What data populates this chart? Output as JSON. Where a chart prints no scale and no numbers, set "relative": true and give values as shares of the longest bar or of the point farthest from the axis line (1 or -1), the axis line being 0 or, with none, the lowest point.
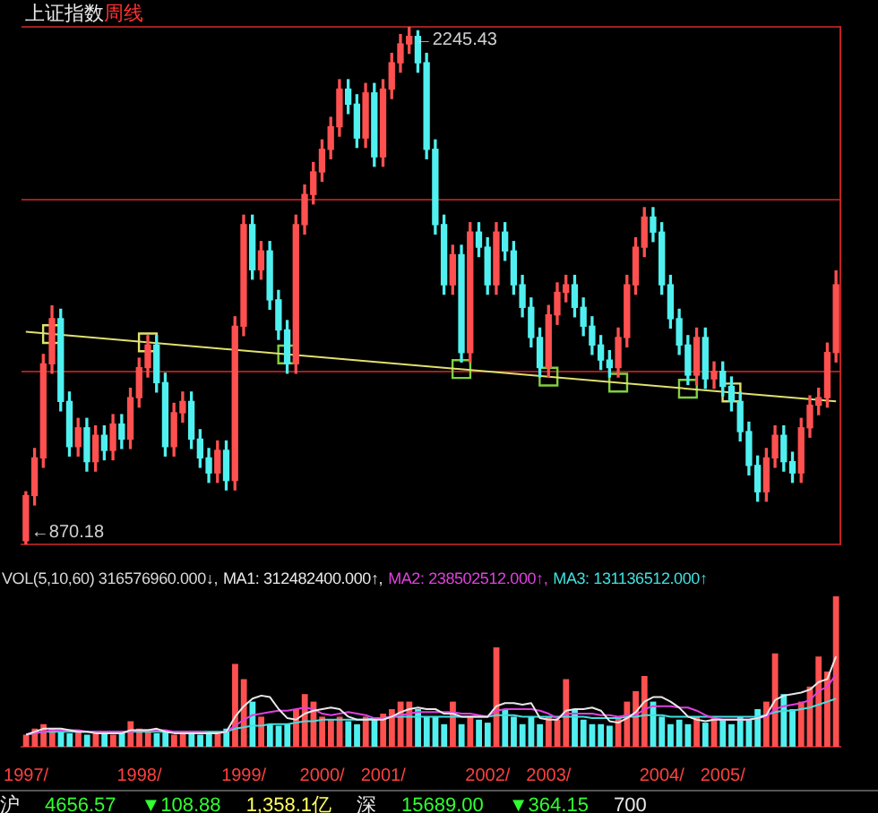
{
  "chart_data": [
    {
      "type": "candlestick",
      "title": "上证指数",
      "subtitle": "周线",
      "categories": [
        null,
        null,
        null,
        null,
        null,
        null,
        null,
        null,
        null,
        null,
        null,
        null,
        null,
        null,
        null,
        null,
        null,
        null,
        null,
        null,
        null,
        null,
        null,
        null,
        null,
        null,
        null,
        null,
        null,
        null,
        null,
        null,
        null,
        null,
        null,
        null,
        null,
        null,
        null,
        null,
        null,
        null,
        null,
        null,
        null,
        null,
        null,
        null,
        null,
        null,
        null,
        null,
        null,
        null,
        null,
        null,
        null,
        null,
        null,
        null,
        null,
        null,
        null,
        null,
        null,
        null,
        null,
        null,
        null,
        null,
        null,
        null,
        null,
        null,
        null,
        null,
        null,
        null,
        null,
        null,
        null,
        null,
        null,
        null,
        null,
        null,
        null,
        null,
        null,
        null,
        null,
        null,
        null,
        null
      ],
      "ohlc": [
        [
          880,
          1010,
          870.18,
          1000
        ],
        [
          1000,
          1125,
          975,
          1100
        ],
        [
          1100,
          1375,
          1075,
          1350
        ],
        [
          1350,
          1504,
          1325,
          1470
        ],
        [
          1470,
          1495,
          1225,
          1250
        ],
        [
          1250,
          1275,
          1105,
          1130
        ],
        [
          1130,
          1205,
          1105,
          1180
        ],
        [
          1180,
          1205,
          1065,
          1090
        ],
        [
          1090,
          1185,
          1065,
          1160
        ],
        [
          1160,
          1185,
          1095,
          1120
        ],
        [
          1120,
          1215,
          1095,
          1190
        ],
        [
          1190,
          1215,
          1125,
          1150
        ],
        [
          1150,
          1285,
          1125,
          1260
        ],
        [
          1260,
          1365,
          1235,
          1340
        ],
        [
          1340,
          1425,
          1315,
          1400
        ],
        [
          1400,
          1425,
          1275,
          1300
        ],
        [
          1300,
          1325,
          1105,
          1130
        ],
        [
          1130,
          1245,
          1105,
          1220
        ],
        [
          1220,
          1275,
          1195,
          1250
        ],
        [
          1250,
          1275,
          1125,
          1150
        ],
        [
          1150,
          1175,
          1075,
          1100
        ],
        [
          1100,
          1125,
          1035,
          1060
        ],
        [
          1060,
          1145,
          1035,
          1120
        ],
        [
          1120,
          1145,
          1015,
          1040
        ],
        [
          1040,
          1475,
          1015,
          1450
        ],
        [
          1450,
          1745,
          1425,
          1720
        ],
        [
          1720,
          1745,
          1575,
          1600
        ],
        [
          1600,
          1675,
          1575,
          1650
        ],
        [
          1650,
          1675,
          1495,
          1520
        ],
        [
          1520,
          1545,
          1415,
          1440
        ],
        [
          1440,
          1465,
          1325,
          1350
        ],
        [
          1350,
          1745,
          1325,
          1720
        ],
        [
          1720,
          1825,
          1695,
          1800
        ],
        [
          1800,
          1885,
          1775,
          1860
        ],
        [
          1860,
          1945,
          1835,
          1920
        ],
        [
          1920,
          2005,
          1895,
          1980
        ],
        [
          1980,
          2105,
          1955,
          2080
        ],
        [
          2080,
          2105,
          2015,
          2040
        ],
        [
          2040,
          2065,
          1925,
          1950
        ],
        [
          1950,
          2095,
          1925,
          2070
        ],
        [
          2070,
          2095,
          1875,
          1900
        ],
        [
          1900,
          2105,
          1875,
          2080
        ],
        [
          2080,
          2175,
          2055,
          2150
        ],
        [
          2150,
          2225,
          2125,
          2200
        ],
        [
          2200,
          2245.43,
          2175,
          2220
        ],
        [
          2220,
          2235,
          2125,
          2150
        ],
        [
          2150,
          2175,
          1895,
          1920
        ],
        [
          1920,
          1945,
          1695,
          1720
        ],
        [
          1720,
          1745,
          1535,
          1560
        ],
        [
          1560,
          1665,
          1535,
          1640
        ],
        [
          1640,
          1665,
          1355,
          1380
        ],
        [
          1380,
          1725,
          1355,
          1700
        ],
        [
          1700,
          1725,
          1635,
          1660
        ],
        [
          1660,
          1685,
          1535,
          1560
        ],
        [
          1560,
          1725,
          1535,
          1700
        ],
        [
          1700,
          1725,
          1625,
          1650
        ],
        [
          1650,
          1675,
          1535,
          1560
        ],
        [
          1560,
          1585,
          1475,
          1500
        ],
        [
          1500,
          1525,
          1395,
          1420
        ],
        [
          1420,
          1445,
          1315,
          1340
        ],
        [
          1340,
          1505,
          1315,
          1480
        ],
        [
          1480,
          1565,
          1455,
          1540
        ],
        [
          1540,
          1585,
          1515,
          1560
        ],
        [
          1560,
          1585,
          1475,
          1500
        ],
        [
          1500,
          1525,
          1425,
          1450
        ],
        [
          1450,
          1475,
          1375,
          1400
        ],
        [
          1400,
          1425,
          1335,
          1360
        ],
        [
          1360,
          1385,
          1315,
          1340
        ],
        [
          1340,
          1445,
          1315,
          1420
        ],
        [
          1420,
          1585,
          1395,
          1560
        ],
        [
          1560,
          1685,
          1535,
          1660
        ],
        [
          1660,
          1765,
          1635,
          1740
        ],
        [
          1740,
          1765,
          1675,
          1700
        ],
        [
          1700,
          1725,
          1535,
          1560
        ],
        [
          1560,
          1585,
          1445,
          1470
        ],
        [
          1470,
          1495,
          1375,
          1400
        ],
        [
          1400,
          1425,
          1295,
          1320
        ],
        [
          1320,
          1445,
          1295,
          1420
        ],
        [
          1420,
          1445,
          1285,
          1310
        ],
        [
          1310,
          1355,
          1285,
          1330
        ],
        [
          1330,
          1355,
          1265,
          1290
        ],
        [
          1290,
          1315,
          1225,
          1250
        ],
        [
          1250,
          1275,
          1145,
          1170
        ],
        [
          1170,
          1195,
          1055,
          1080
        ],
        [
          1080,
          1105,
          985,
          1010
        ],
        [
          1010,
          1125,
          985,
          1100
        ],
        [
          1100,
          1185,
          1075,
          1160
        ],
        [
          1160,
          1185,
          1065,
          1090
        ],
        [
          1090,
          1115,
          1035,
          1060
        ],
        [
          1060,
          1205,
          1035,
          1180
        ],
        [
          1180,
          1265,
          1155,
          1240
        ],
        [
          1240,
          1285,
          1215,
          1260
        ],
        [
          1260,
          1405,
          1235,
          1380
        ],
        [
          1380,
          1597,
          1355,
          1560
        ]
      ],
      "colors": [
        "#ff5050",
        "#ff5050",
        "#ff5050",
        "#ff5050",
        "#50f0f0",
        "#50f0f0",
        "#ff5050",
        "#50f0f0",
        "#ff5050",
        "#50f0f0",
        "#ff5050",
        "#50f0f0",
        "#ff5050",
        "#ff5050",
        "#ff5050",
        "#50f0f0",
        "#50f0f0",
        "#ff5050",
        "#ff5050",
        "#50f0f0",
        "#50f0f0",
        "#50f0f0",
        "#ff5050",
        "#50f0f0",
        "#ff5050",
        "#ff5050",
        "#50f0f0",
        "#ff5050",
        "#50f0f0",
        "#50f0f0",
        "#50f0f0",
        "#ff5050",
        "#ff5050",
        "#ff5050",
        "#ff5050",
        "#ff5050",
        "#ff5050",
        "#50f0f0",
        "#50f0f0",
        "#ff5050",
        "#50f0f0",
        "#ff5050",
        "#ff5050",
        "#ff5050",
        "#ff5050",
        "#50f0f0",
        "#50f0f0",
        "#50f0f0",
        "#50f0f0",
        "#ff5050",
        "#50f0f0",
        "#ff5050",
        "#50f0f0",
        "#50f0f0",
        "#ff5050",
        "#50f0f0",
        "#50f0f0",
        "#50f0f0",
        "#50f0f0",
        "#50f0f0",
        "#ff5050",
        "#ff5050",
        "#ff5050",
        "#50f0f0",
        "#50f0f0",
        "#50f0f0",
        "#50f0f0",
        "#50f0f0",
        "#ff5050",
        "#ff5050",
        "#ff5050",
        "#ff5050",
        "#50f0f0",
        "#50f0f0",
        "#50f0f0",
        "#50f0f0",
        "#50f0f0",
        "#ff5050",
        "#50f0f0",
        "#ff5050",
        "#50f0f0",
        "#50f0f0",
        "#50f0f0",
        "#50f0f0",
        "#50f0f0",
        "#ff5050",
        "#ff5050",
        "#50f0f0",
        "#50f0f0",
        "#ff5050",
        "#ff5050",
        "#ff5050",
        "#ff5050",
        "#ff5050"
      ],
      "ylim": [
        870.18,
        2245.43
      ],
      "yticks": [
        {
          "value": 870.18,
          "label": null
        },
        {
          "value": 1328.6,
          "label": null
        },
        {
          "value": 1787.01,
          "label": null
        },
        {
          "value": 2245.43,
          "label": null
        }
      ],
      "grid": "y",
      "tick_labels": false,
      "annotations": [
        "←2245.43",
        "←870.18"
      ],
      "series": [
        {
          "type": "line",
          "color": "#e0e070",
          "values": [
            1435,
            null,
            null,
            null,
            null,
            null,
            null,
            null,
            null,
            null,
            null,
            null,
            null,
            null,
            null,
            null,
            null,
            null,
            null,
            null,
            null,
            null,
            null,
            null,
            null,
            null,
            null,
            null,
            null,
            null,
            null,
            null,
            null,
            null,
            null,
            null,
            null,
            null,
            null,
            null,
            null,
            null,
            null,
            null,
            null,
            null,
            null,
            null,
            null,
            null,
            null,
            null,
            null,
            null,
            null,
            null,
            null,
            null,
            null,
            null,
            null,
            null,
            null,
            null,
            null,
            null,
            null,
            null,
            null,
            null,
            null,
            null,
            null,
            null,
            null,
            null,
            null,
            null,
            null,
            null,
            null,
            null,
            null,
            null,
            null,
            null,
            null,
            null,
            null,
            null,
            null,
            null,
            null,
            1250
          ]
        },
        {
          "type": "scatter",
          "marker": "square",
          "values": [
            null,
            null,
            null,
            1429,
            null,
            null,
            null,
            null,
            null,
            null,
            null,
            null,
            null,
            null,
            1407,
            null,
            null,
            null,
            null,
            null,
            null,
            null,
            null,
            null,
            null,
            null,
            null,
            null,
            null,
            null,
            1375,
            null,
            null,
            null,
            null,
            null,
            null,
            null,
            null,
            null,
            null,
            null,
            null,
            null,
            null,
            null,
            null,
            null,
            null,
            null,
            1336,
            null,
            null,
            null,
            null,
            null,
            null,
            null,
            null,
            null,
            1316,
            null,
            null,
            null,
            null,
            null,
            null,
            null,
            1300,
            null,
            null,
            null,
            null,
            null,
            null,
            null,
            1284,
            null,
            null,
            null,
            null,
            1274,
            null,
            null,
            null,
            null,
            null,
            null,
            null,
            null,
            null,
            null,
            null,
            null
          ],
          "colors": [
            null,
            null,
            null,
            "#e0e070",
            null,
            null,
            null,
            null,
            null,
            null,
            null,
            null,
            null,
            null,
            "#e0e070",
            null,
            null,
            null,
            null,
            null,
            null,
            null,
            null,
            null,
            null,
            null,
            null,
            null,
            null,
            null,
            "#80d040",
            null,
            null,
            null,
            null,
            null,
            null,
            null,
            null,
            null,
            null,
            null,
            null,
            null,
            null,
            null,
            null,
            null,
            null,
            null,
            "#80d040",
            null,
            null,
            null,
            null,
            null,
            null,
            null,
            null,
            null,
            "#80d040",
            null,
            null,
            null,
            null,
            null,
            null,
            null,
            "#80d040",
            null,
            null,
            null,
            null,
            null,
            null,
            null,
            "#80d040",
            null,
            null,
            null,
            null,
            "#e0e070",
            null,
            null,
            null,
            null,
            null,
            null,
            null,
            null,
            null,
            null,
            null,
            null
          ]
        }
      ]
    },
    {
      "type": "bar",
      "relative": true,
      "title": "VOL(5,10,60) 316576960.000↓,",
      "legend": "top left",
      "tick_labels": "x",
      "categories": [
        "1997/",
        null,
        null,
        null,
        null,
        null,
        null,
        null,
        null,
        null,
        null,
        null,
        null,
        "1998/",
        null,
        null,
        null,
        null,
        null,
        null,
        null,
        null,
        null,
        null,
        null,
        "1999/",
        null,
        null,
        null,
        null,
        null,
        null,
        null,
        null,
        "2000/",
        null,
        null,
        null,
        null,
        null,
        null,
        "2001/",
        null,
        null,
        null,
        null,
        null,
        null,
        null,
        null,
        null,
        null,
        null,
        "2002/",
        null,
        null,
        null,
        null,
        null,
        null,
        "2003/",
        null,
        null,
        null,
        null,
        null,
        null,
        null,
        null,
        null,
        null,
        null,
        null,
        "2004/",
        null,
        null,
        null,
        null,
        null,
        null,
        "2005/",
        null,
        null,
        null,
        null,
        null,
        null,
        null,
        null,
        null,
        null,
        null,
        null,
        null
      ],
      "annotations": [
        "沪",
        "4656.57",
        "▼108.88",
        "1,358.1亿",
        "深",
        "15689.00",
        "▼364.15",
        "700"
      ],
      "series": [
        {
          "values": [
            0.08,
            0.12,
            0.15,
            0.12,
            0.1,
            0.09,
            0.1,
            0.08,
            0.09,
            0.1,
            0.08,
            0.1,
            0.17,
            0.12,
            0.1,
            0.09,
            0.1,
            0.08,
            0.09,
            0.1,
            0.08,
            0.1,
            0.09,
            0.12,
            0.55,
            0.45,
            0.3,
            0.2,
            0.15,
            0.14,
            0.15,
            0.25,
            0.35,
            0.3,
            0.2,
            0.18,
            0.2,
            0.17,
            0.15,
            0.2,
            0.18,
            0.22,
            0.25,
            0.3,
            0.3,
            0.25,
            0.2,
            0.2,
            0.15,
            0.3,
            0.15,
            0.2,
            0.18,
            0.16,
            0.66,
            0.25,
            0.2,
            0.15,
            0.2,
            0.15,
            0.2,
            0.18,
            0.45,
            0.25,
            0.18,
            0.15,
            0.15,
            0.14,
            0.2,
            0.3,
            0.37,
            0.47,
            0.3,
            0.2,
            0.15,
            0.18,
            0.15,
            0.2,
            0.16,
            0.2,
            0.18,
            0.15,
            0.2,
            0.18,
            0.25,
            0.3,
            0.62,
            0.35,
            0.25,
            0.3,
            0.4,
            0.6,
            0.5,
            1
          ],
          "colors": [
            "#ff5050",
            "#ff5050",
            "#ff5050",
            "#ff5050",
            "#50f0f0",
            "#50f0f0",
            "#ff5050",
            "#50f0f0",
            "#ff5050",
            "#50f0f0",
            "#ff5050",
            "#50f0f0",
            "#ff5050",
            "#ff5050",
            "#ff5050",
            "#50f0f0",
            "#50f0f0",
            "#ff5050",
            "#ff5050",
            "#50f0f0",
            "#50f0f0",
            "#50f0f0",
            "#ff5050",
            "#50f0f0",
            "#ff5050",
            "#ff5050",
            "#50f0f0",
            "#ff5050",
            "#50f0f0",
            "#50f0f0",
            "#50f0f0",
            "#ff5050",
            "#ff5050",
            "#ff5050",
            "#ff5050",
            "#ff5050",
            "#ff5050",
            "#50f0f0",
            "#50f0f0",
            "#ff5050",
            "#50f0f0",
            "#ff5050",
            "#ff5050",
            "#ff5050",
            "#ff5050",
            "#50f0f0",
            "#50f0f0",
            "#50f0f0",
            "#50f0f0",
            "#ff5050",
            "#50f0f0",
            "#ff5050",
            "#50f0f0",
            "#50f0f0",
            "#ff5050",
            "#50f0f0",
            "#50f0f0",
            "#50f0f0",
            "#50f0f0",
            "#50f0f0",
            "#ff5050",
            "#ff5050",
            "#ff5050",
            "#50f0f0",
            "#50f0f0",
            "#50f0f0",
            "#50f0f0",
            "#50f0f0",
            "#ff5050",
            "#ff5050",
            "#ff5050",
            "#ff5050",
            "#50f0f0",
            "#50f0f0",
            "#50f0f0",
            "#50f0f0",
            "#50f0f0",
            "#ff5050",
            "#50f0f0",
            "#ff5050",
            "#50f0f0",
            "#50f0f0",
            "#50f0f0",
            "#50f0f0",
            "#50f0f0",
            "#ff5050",
            "#ff5050",
            "#50f0f0",
            "#50f0f0",
            "#ff5050",
            "#ff5050",
            "#ff5050",
            "#ff5050",
            "#ff5050"
          ]
        },
        {
          "type": "line",
          "name": "MA1: 312482400.000↑,",
          "color": "#e8e8e8",
          "values": [
            0.08,
            0.1,
            0.12,
            0.12,
            0.12,
            0.11,
            0.1,
            0.1,
            0.09,
            0.09,
            0.09,
            0.09,
            0.11,
            0.11,
            0.11,
            0.12,
            0.1,
            0.09,
            0.09,
            0.09,
            0.09,
            0.09,
            0.09,
            0.1,
            0.2,
            0.27,
            0.32,
            0.34,
            0.33,
            0.25,
            0.19,
            0.18,
            0.22,
            0.24,
            0.25,
            0.26,
            0.25,
            0.2,
            0.18,
            0.18,
            0.18,
            0.18,
            0.2,
            0.23,
            0.25,
            0.26,
            0.25,
            0.25,
            0.22,
            0.22,
            0.2,
            0.2,
            0.2,
            0.2,
            0.27,
            0.29,
            0.29,
            0.28,
            0.29,
            0.19,
            0.18,
            0.18,
            0.24,
            0.25,
            0.25,
            0.26,
            0.24,
            0.17,
            0.16,
            0.19,
            0.23,
            0.3,
            0.33,
            0.33,
            0.3,
            0.26,
            0.2,
            0.18,
            0.17,
            0.18,
            0.18,
            0.18,
            0.18,
            0.18,
            0.19,
            0.21,
            0.31,
            0.34,
            0.35,
            0.36,
            0.38,
            0.43,
            0.45,
            0.6
          ]
        },
        {
          "type": "line",
          "name": "MA2: 238502512.000↑,",
          "color": "#e040e0",
          "values": [
            0.08,
            0.09,
            0.1,
            0.11,
            0.11,
            0.11,
            0.11,
            0.1,
            0.1,
            0.1,
            0.1,
            0.1,
            0.1,
            0.11,
            0.11,
            0.11,
            0.11,
            0.1,
            0.1,
            0.1,
            0.1,
            0.09,
            0.09,
            0.1,
            0.14,
            0.18,
            0.21,
            0.22,
            0.23,
            0.24,
            0.24,
            0.25,
            0.26,
            0.25,
            0.22,
            0.21,
            0.22,
            0.23,
            0.22,
            0.21,
            0.19,
            0.19,
            0.2,
            0.21,
            0.22,
            0.23,
            0.23,
            0.23,
            0.23,
            0.23,
            0.22,
            0.22,
            0.21,
            0.2,
            0.24,
            0.25,
            0.25,
            0.25,
            0.25,
            0.24,
            0.22,
            0.19,
            0.22,
            0.22,
            0.22,
            0.22,
            0.21,
            0.21,
            0.2,
            0.21,
            0.21,
            0.25,
            0.27,
            0.27,
            0.27,
            0.26,
            0.26,
            0.24,
            0.21,
            0.19,
            0.18,
            0.18,
            0.18,
            0.18,
            0.19,
            0.2,
            0.25,
            0.27,
            0.28,
            0.29,
            0.31,
            0.37,
            0.4,
            0.48
          ]
        },
        {
          "type": "line",
          "name": "MA3: 131136512.000↑",
          "color": "#40e0e0",
          "values": [
            0.08,
            0.09,
            0.1,
            0.1,
            0.1,
            0.1,
            0.1,
            0.1,
            0.1,
            0.1,
            0.1,
            0.1,
            0.1,
            0.1,
            0.1,
            0.1,
            0.1,
            0.1,
            0.1,
            0.1,
            0.1,
            0.1,
            0.1,
            0.1,
            0.12,
            0.13,
            0.14,
            0.14,
            0.15,
            0.15,
            0.15,
            0.16,
            0.17,
            0.17,
            0.18,
            0.18,
            0.18,
            0.18,
            0.18,
            0.18,
            0.19,
            0.19,
            0.2,
            0.2,
            0.2,
            0.2,
            0.2,
            0.2,
            0.2,
            0.2,
            0.2,
            0.2,
            0.2,
            0.2,
            0.21,
            0.21,
            0.21,
            0.2,
            0.2,
            0.2,
            0.2,
            0.2,
            0.2,
            0.2,
            0.2,
            0.19,
            0.19,
            0.19,
            0.19,
            0.2,
            0.2,
            0.21,
            0.21,
            0.21,
            0.2,
            0.2,
            0.2,
            0.2,
            0.2,
            0.2,
            0.2,
            0.2,
            0.2,
            0.2,
            0.2,
            0.21,
            0.23,
            0.24,
            0.24,
            0.25,
            0.26,
            0.28,
            0.3,
            0.32
          ]
        }
      ]
    }
  ]
}
